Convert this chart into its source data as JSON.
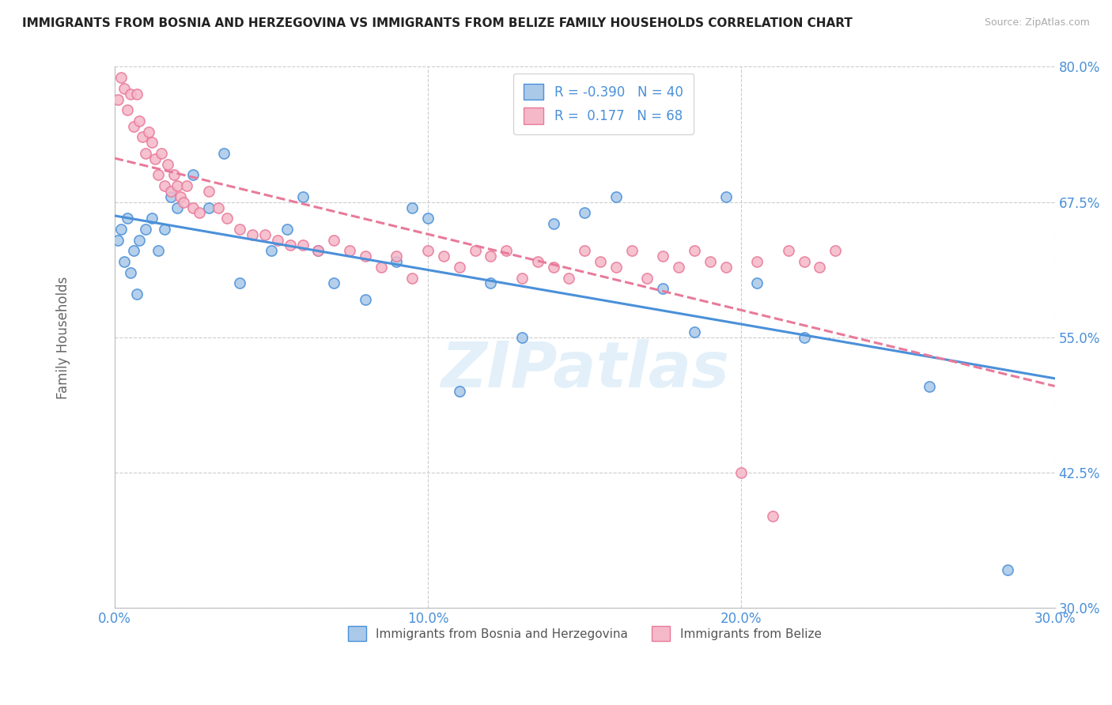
{
  "title": "IMMIGRANTS FROM BOSNIA AND HERZEGOVINA VS IMMIGRANTS FROM BELIZE FAMILY HOUSEHOLDS CORRELATION CHART",
  "source": "Source: ZipAtlas.com",
  "ylabel": "Family Households",
  "xmin": 0.0,
  "xmax": 0.3,
  "ymin": 0.3,
  "ymax": 0.8,
  "yticks": [
    0.3,
    0.425,
    0.55,
    0.675,
    0.8
  ],
  "ytick_labels": [
    "30.0%",
    "42.5%",
    "55.0%",
    "67.5%",
    "80.0%"
  ],
  "xticks": [
    0.0,
    0.1,
    0.2,
    0.3
  ],
  "xtick_labels": [
    "0.0%",
    "10.0%",
    "20.0%",
    "30.0%"
  ],
  "color_blue": "#aac8e8",
  "color_pink": "#f5b8c8",
  "line_color_blue": "#4a90d9",
  "line_color_pink": "#e87a9a",
  "legend_R_blue": "-0.390",
  "legend_N_blue": "40",
  "legend_R_pink": "0.177",
  "legend_N_pink": "68",
  "legend_label_blue": "Immigrants from Bosnia and Herzegovina",
  "legend_label_pink": "Immigrants from Belize",
  "watermark": "ZIPatlas",
  "bosnia_x": [
    0.001,
    0.002,
    0.003,
    0.004,
    0.005,
    0.006,
    0.007,
    0.008,
    0.01,
    0.012,
    0.014,
    0.016,
    0.018,
    0.02,
    0.025,
    0.03,
    0.035,
    0.04,
    0.05,
    0.055,
    0.06,
    0.065,
    0.07,
    0.08,
    0.09,
    0.095,
    0.1,
    0.11,
    0.12,
    0.13,
    0.14,
    0.15,
    0.16,
    0.175,
    0.185,
    0.195,
    0.205,
    0.22,
    0.26,
    0.285
  ],
  "bosnia_y": [
    0.64,
    0.65,
    0.62,
    0.66,
    0.61,
    0.63,
    0.59,
    0.64,
    0.65,
    0.66,
    0.63,
    0.65,
    0.68,
    0.67,
    0.7,
    0.67,
    0.72,
    0.6,
    0.63,
    0.65,
    0.68,
    0.63,
    0.6,
    0.585,
    0.62,
    0.67,
    0.66,
    0.5,
    0.6,
    0.55,
    0.655,
    0.665,
    0.68,
    0.595,
    0.555,
    0.68,
    0.6,
    0.55,
    0.505,
    0.335
  ],
  "belize_x": [
    0.001,
    0.002,
    0.003,
    0.004,
    0.005,
    0.006,
    0.007,
    0.008,
    0.009,
    0.01,
    0.011,
    0.012,
    0.013,
    0.014,
    0.015,
    0.016,
    0.017,
    0.018,
    0.019,
    0.02,
    0.021,
    0.022,
    0.023,
    0.025,
    0.027,
    0.03,
    0.033,
    0.036,
    0.04,
    0.044,
    0.048,
    0.052,
    0.056,
    0.06,
    0.065,
    0.07,
    0.075,
    0.08,
    0.085,
    0.09,
    0.095,
    0.1,
    0.105,
    0.11,
    0.115,
    0.12,
    0.125,
    0.13,
    0.135,
    0.14,
    0.145,
    0.15,
    0.155,
    0.16,
    0.165,
    0.17,
    0.175,
    0.18,
    0.185,
    0.19,
    0.195,
    0.2,
    0.205,
    0.21,
    0.215,
    0.22,
    0.225,
    0.23
  ],
  "belize_y": [
    0.77,
    0.79,
    0.78,
    0.76,
    0.775,
    0.745,
    0.775,
    0.75,
    0.735,
    0.72,
    0.74,
    0.73,
    0.715,
    0.7,
    0.72,
    0.69,
    0.71,
    0.685,
    0.7,
    0.69,
    0.68,
    0.675,
    0.69,
    0.67,
    0.665,
    0.685,
    0.67,
    0.66,
    0.65,
    0.645,
    0.645,
    0.64,
    0.635,
    0.635,
    0.63,
    0.64,
    0.63,
    0.625,
    0.615,
    0.625,
    0.605,
    0.63,
    0.625,
    0.615,
    0.63,
    0.625,
    0.63,
    0.605,
    0.62,
    0.615,
    0.605,
    0.63,
    0.62,
    0.615,
    0.63,
    0.605,
    0.625,
    0.615,
    0.63,
    0.62,
    0.615,
    0.425,
    0.62,
    0.385,
    0.63,
    0.62,
    0.615,
    0.63
  ]
}
